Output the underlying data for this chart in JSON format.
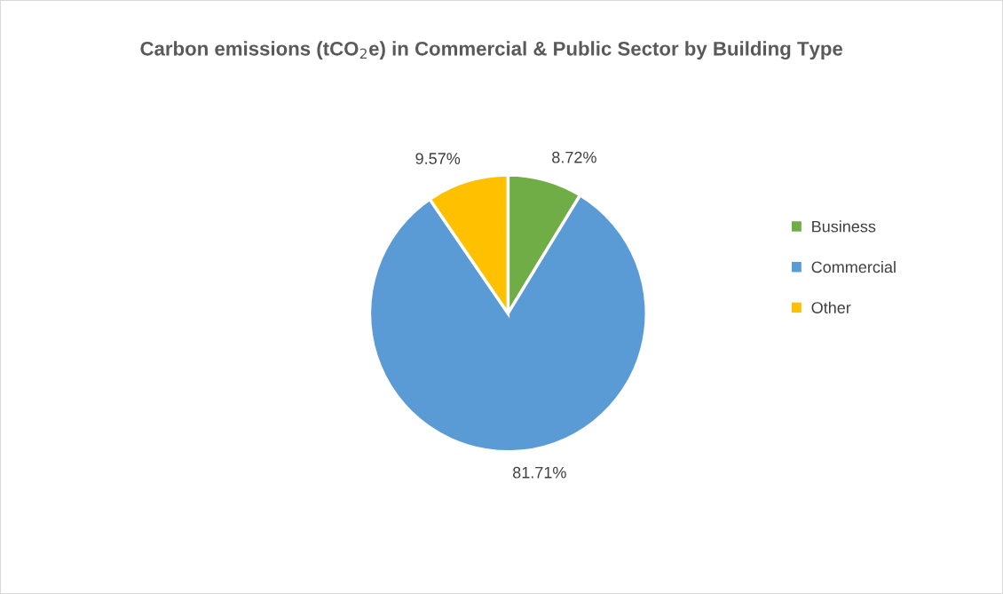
{
  "chart_data": {
    "type": "pie",
    "title": "Carbon emissions (tCO$_{2}$e) in Commercial & Public Sector by Building Type",
    "categories": [
      "Business",
      "Commercial",
      "Other"
    ],
    "values": [
      8.72,
      81.71,
      9.57
    ],
    "value_labels": [
      "8.72%",
      "81.71%",
      "9.57%"
    ],
    "colors": [
      "#70ad47",
      "#5b9bd5",
      "#ffc000"
    ],
    "legend": "right"
  }
}
